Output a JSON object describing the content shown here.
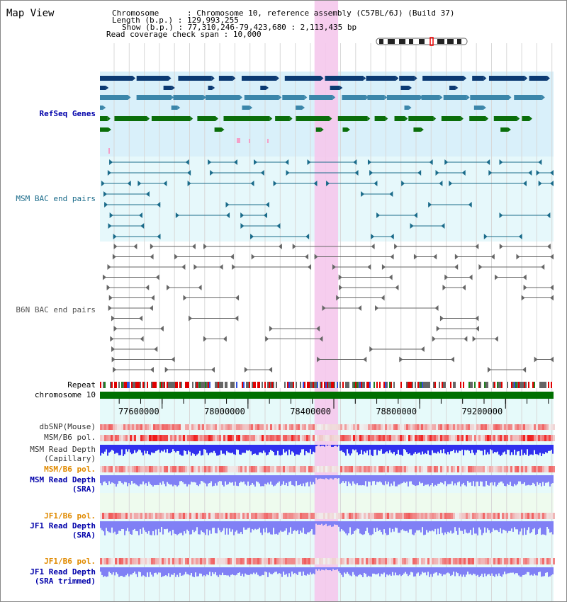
{
  "page": {
    "title": "Map View"
  },
  "header": {
    "rows": [
      {
        "key": "Chromosome      ",
        "value": "Chromosome 10, reference assembly (C57BL/6J) (Build 37)"
      },
      {
        "key": "Length (b.p.)",
        "value": "129,993,255"
      },
      {
        "key": "Show (b.p.)",
        "value": "77,310,246-79,423,680 : 2,113,435 bp"
      },
      {
        "key": "Read coverage check span",
        "value": "10,000"
      }
    ]
  },
  "axis": {
    "range": [
      77310246,
      79423680
    ],
    "ticks": [
      77600000,
      78000000,
      78400000,
      78800000,
      79200000
    ],
    "tick_labels": [
      "77600000",
      "78000000",
      "78400000",
      "78800000",
      "79200000"
    ]
  },
  "highlight": {
    "start": 78310000,
    "end": 78420000,
    "color": "#f5c8ec"
  },
  "tracks": [
    {
      "id": "refseq",
      "label": "RefSeq Genes",
      "color": "#0000aa",
      "bg": "#d9f0fa"
    },
    {
      "id": "msm-bac",
      "label": "MSM BAC end pairs",
      "color": "#1a6b8a",
      "bg": "#e6f8fb"
    },
    {
      "id": "b6n-bac",
      "label": "B6N BAC end pairs",
      "color": "#555555",
      "bg": "#ffffff"
    },
    {
      "id": "repeat",
      "label": "Repeat",
      "color": "#000000"
    },
    {
      "id": "chrom",
      "label": "chromosome 10",
      "color": "#000000",
      "bar_color": "#007000"
    },
    {
      "id": "dbsnp",
      "label": "dbSNP(Mouse)",
      "color": "#333333"
    },
    {
      "id": "msm-b6-pol",
      "label": "MSM/B6 pol.",
      "color": "#333333"
    },
    {
      "id": "msm-depth-cap",
      "label": "MSM Read Depth",
      "sublabel": "(Capillary)",
      "color": "#333333"
    },
    {
      "id": "msm-b6-pol2",
      "label": "MSM/B6 pol.",
      "color": "#e08a00"
    },
    {
      "id": "msm-depth-sra",
      "label": "MSM Read Depth",
      "sublabel": "(SRA)",
      "color": "#0000aa"
    },
    {
      "id": "jf1-b6-pol",
      "label": "JF1/B6 pol.",
      "color": "#e08a00"
    },
    {
      "id": "jf1-depth-sra",
      "label": "JF1 Read Depth",
      "sublabel": "(SRA)",
      "color": "#0000aa"
    },
    {
      "id": "jf1-b6-pol2",
      "label": "JF1/B6 pol.",
      "color": "#e08a00"
    },
    {
      "id": "jf1-depth-trim",
      "label": "JF1 Read Depth",
      "sublabel": "(SRA trimmed)",
      "color": "#0000aa"
    }
  ],
  "colors": {
    "gene_dark": "#0b3a73",
    "gene_mid": "#3b86aa",
    "gene_green": "#0a6e0a",
    "gene_pink": "#f4a0c8",
    "bac_msm": "#1a6b8a",
    "bac_b6n": "#666666",
    "depth_blue": "#3030ee",
    "depth_light": "#8080f5",
    "snp_red": "#f08080"
  }
}
